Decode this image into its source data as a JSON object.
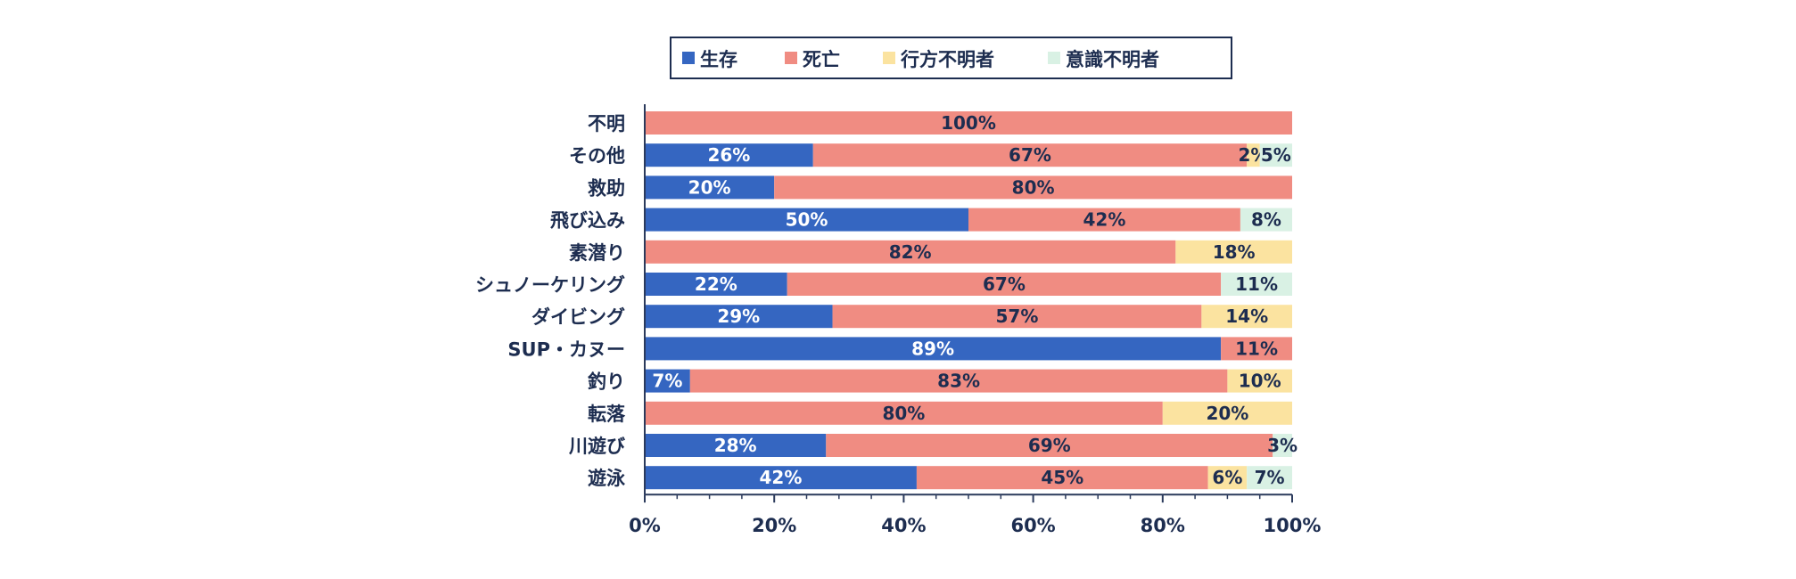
{
  "colors": {
    "text": "#1d2d50",
    "axis": "#2b3a5c",
    "legend_border": "#1d2d50"
  },
  "chart_data": {
    "type": "bar",
    "orientation": "horizontal",
    "stacked": true,
    "normalized": true,
    "title": "",
    "xlabel": "",
    "ylabel": "",
    "xlim": [
      0,
      100
    ],
    "x_ticks": [
      "0%",
      "20%",
      "40%",
      "60%",
      "80%",
      "100%"
    ],
    "grid": false,
    "legend_position": "top-center",
    "categories": [
      "不明",
      "その他",
      "救助",
      "飛び込み",
      "素潜り",
      "シュノーケリング",
      "ダイビング",
      "SUP・カヌー",
      "釣り",
      "転落",
      "川遊び",
      "遊泳"
    ],
    "series": [
      {
        "name": "生存",
        "color": "#3566c1",
        "label_color": "#ffffff",
        "values": [
          0,
          26,
          20,
          50,
          0,
          22,
          29,
          89,
          7,
          0,
          28,
          42
        ]
      },
      {
        "name": "死亡",
        "color": "#f08c82",
        "label_color": "#1d2d50",
        "values": [
          100,
          67,
          80,
          42,
          82,
          67,
          57,
          11,
          83,
          80,
          69,
          45
        ]
      },
      {
        "name": "行方不明者",
        "color": "#fbe3a0",
        "label_color": "#1d2d50",
        "values": [
          0,
          2,
          0,
          0,
          18,
          0,
          14,
          0,
          10,
          20,
          0,
          6
        ]
      },
      {
        "name": "意識不明者",
        "color": "#d9f1e4",
        "label_color": "#1d2d50",
        "values": [
          0,
          5,
          0,
          8,
          0,
          11,
          0,
          0,
          0,
          0,
          3,
          7
        ]
      }
    ]
  }
}
